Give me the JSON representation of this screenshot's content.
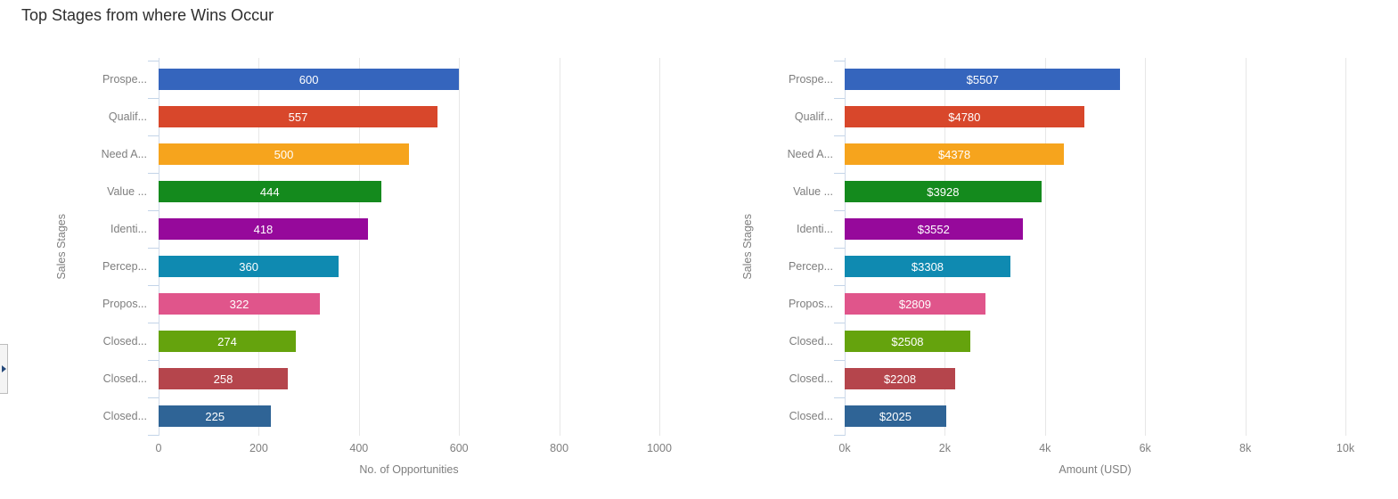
{
  "page": {
    "title": "Top Stages from where Wins Occur"
  },
  "icons": {
    "panel_toggle": "right-arrow"
  },
  "colors": {
    "bar_palette": [
      "#3565bd",
      "#d8472b",
      "#f6a41d",
      "#148a1d",
      "#96099b",
      "#0f8ab1",
      "#e0558b",
      "#65a30d",
      "#b5454c",
      "#2f6496"
    ],
    "grid_line": "#e7e7e7",
    "axis_line": "#cfdae9",
    "tick_mark": "#c3d4e8",
    "axis_text": "#7e7e7e",
    "bar_label_text": "#ffffff",
    "title_text": "#2e2e2e"
  },
  "chart_data": [
    {
      "type": "bar",
      "orientation": "horizontal",
      "xlabel": "No. of Opportunities",
      "ylabel": "Sales Stages",
      "categories": [
        "Prospe...",
        "Qualif...",
        "Need A...",
        "Value ...",
        "Identi...",
        "Percep...",
        "Propos...",
        "Closed...",
        "Closed...",
        "Closed..."
      ],
      "values": [
        600,
        557,
        500,
        444,
        418,
        360,
        322,
        274,
        258,
        225
      ],
      "bar_labels": [
        "600",
        "557",
        "500",
        "444",
        "418",
        "360",
        "322",
        "274",
        "258",
        "225"
      ],
      "xlim": [
        0,
        1000
      ],
      "xticks": [
        0,
        200,
        400,
        600,
        800,
        1000
      ],
      "xtick_labels": [
        "0",
        "200",
        "400",
        "600",
        "800",
        "1000"
      ],
      "grid": true,
      "legend": false
    },
    {
      "type": "bar",
      "orientation": "horizontal",
      "xlabel": "Amount (USD)",
      "ylabel": "Sales Stages",
      "categories": [
        "Prospe...",
        "Qualif...",
        "Need A...",
        "Value ...",
        "Identi...",
        "Percep...",
        "Propos...",
        "Closed...",
        "Closed...",
        "Closed..."
      ],
      "values": [
        5507,
        4780,
        4378,
        3928,
        3552,
        3308,
        2809,
        2508,
        2208,
        2025
      ],
      "bar_labels": [
        "$5507",
        "$4780",
        "$4378",
        "$3928",
        "$3552",
        "$3308",
        "$2809",
        "$2508",
        "$2208",
        "$2025"
      ],
      "xlim": [
        0,
        10000
      ],
      "xticks": [
        0,
        2000,
        4000,
        6000,
        8000,
        10000
      ],
      "xtick_labels": [
        "0k",
        "2k",
        "4k",
        "6k",
        "8k",
        "10k"
      ],
      "grid": true,
      "legend": false
    }
  ]
}
